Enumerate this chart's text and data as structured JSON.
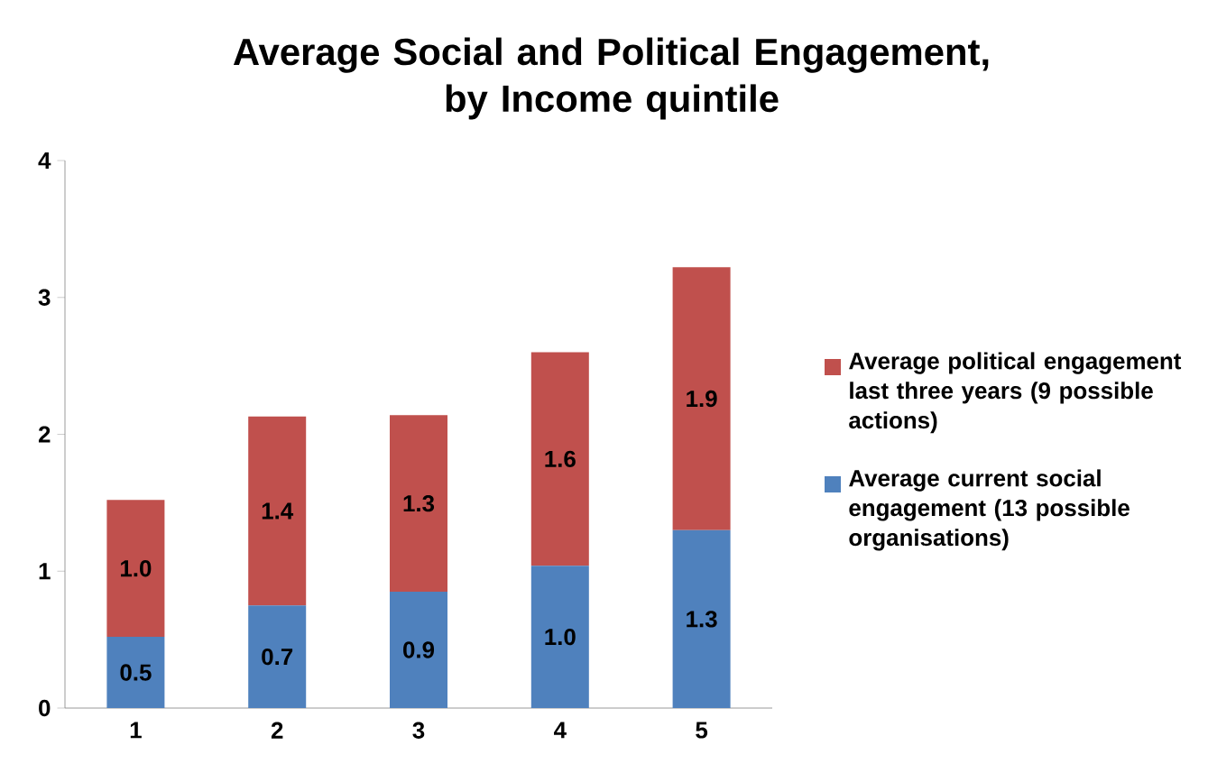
{
  "chart_data": {
    "type": "bar",
    "stacked": true,
    "title": "Average Social and Political Engagement,\nby Income quintile",
    "categories": [
      "1",
      "2",
      "3",
      "4",
      "5"
    ],
    "series": [
      {
        "name": "Average current social engagement (13 possible organisations)",
        "color": "#4f81bd",
        "values": [
          0.52,
          0.75,
          0.85,
          1.04,
          1.3
        ],
        "value_labels": [
          "0.5",
          "0.7",
          "0.9",
          "1.0",
          "1.3"
        ]
      },
      {
        "name": "Average political engagement last three years (9 possible actions)",
        "color": "#c0504d",
        "values": [
          1.0,
          1.38,
          1.29,
          1.56,
          1.92
        ],
        "value_labels": [
          "1.0",
          "1.4",
          "1.3",
          "1.6",
          "1.9"
        ]
      }
    ],
    "ylim": [
      0,
      4
    ],
    "yticks": [
      0,
      1,
      2,
      3,
      4
    ],
    "grid": false,
    "legend": "right"
  }
}
